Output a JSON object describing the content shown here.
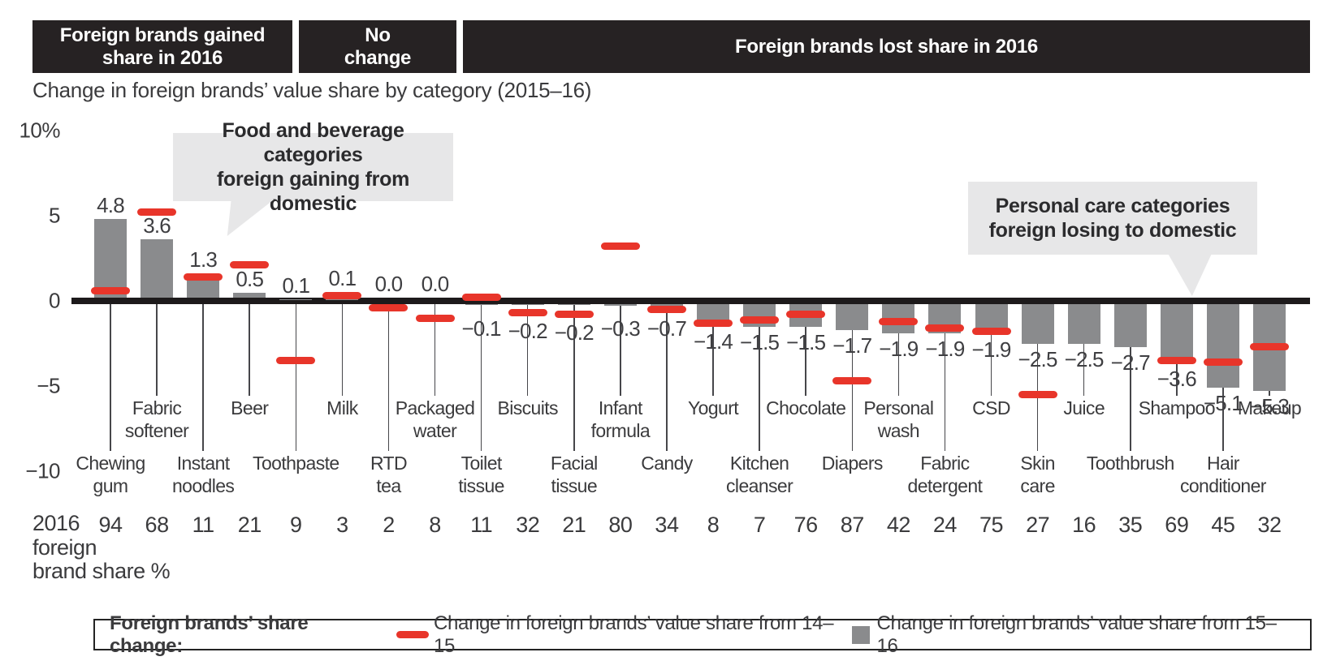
{
  "header": {
    "bands": [
      {
        "id": "gained",
        "label": "Foreign brands gained\nshare in 2016"
      },
      {
        "id": "nochange",
        "label": "No\nchange"
      },
      {
        "id": "lost",
        "label": "Foreign brands lost share in 2016"
      }
    ],
    "title": "Change in foreign brands’ value share by category (2015–16)"
  },
  "callouts": [
    {
      "id": "food",
      "text": "Food and beverage categories\nforeign gaining from domestic"
    },
    {
      "id": "personal",
      "text": "Personal care categories\nforeign losing to domestic"
    }
  ],
  "legend": {
    "title": "Foreign brands’ share change:",
    "items": [
      {
        "swatch": "red-dash",
        "label": "Change in foreign brands’ value share from 14–15"
      },
      {
        "swatch": "gray-square",
        "label": "Change in foreign brands’ value share from 15–16"
      }
    ]
  },
  "colors": {
    "band_bg": "#262223",
    "bar": "#8a8b8d",
    "dash": "#e8352a",
    "callout_bg": "#e7e7e8",
    "axis": "#1d1a1b",
    "text": "#3b3b3d"
  },
  "chart_data": {
    "type": "bar",
    "title": "Change in foreign brands’ value share by category (2015–16)",
    "ylabel": "%",
    "ylim": [
      -10,
      10
    ],
    "grid": false,
    "y_axis_ticks": {
      "labels": [
        "10%",
        "5",
        "0",
        "−5",
        "−10"
      ],
      "values": [
        10,
        5,
        0,
        -5,
        -10
      ]
    },
    "categories": [
      "Chewing\ngum",
      "Fabric\nsoftener",
      "Instant\nnoodles",
      "Beer",
      "Toothpaste",
      "Milk",
      "RTD\ntea",
      "Packaged\nwater",
      "Toilet\ntissue",
      "Biscuits",
      "Facial\ntissue",
      "Infant\nformula",
      "Candy",
      "Yogurt",
      "Kitchen\ncleanser",
      "Chocolate",
      "Diapers",
      "Personal\nwash",
      "Fabric\ndetergent",
      "CSD",
      "Skin\ncare",
      "Juice",
      "Toothbrush",
      "Shampoo",
      "Hair\nconditioner",
      "Makeup"
    ],
    "series": [
      {
        "name": "Change in foreign brands’ value share from 14–15",
        "mark": "red-dash",
        "values": [
          0.6,
          5.2,
          1.4,
          2.1,
          -3.5,
          0.3,
          -0.4,
          -1.0,
          0.2,
          -0.7,
          -0.8,
          3.2,
          -0.5,
          -1.3,
          -1.1,
          -0.8,
          -4.7,
          -1.2,
          -1.6,
          -1.8,
          -5.5,
          null,
          null,
          -3.5,
          -3.6,
          -2.7
        ]
      },
      {
        "name": "Change in foreign brands’ value share from 15–16",
        "mark": "gray-bar",
        "values": [
          4.8,
          3.6,
          1.3,
          0.5,
          0.1,
          0.1,
          0.0,
          0.0,
          -0.1,
          -0.2,
          -0.2,
          -0.3,
          -0.7,
          -1.4,
          -1.5,
          -1.5,
          -1.7,
          -1.9,
          -1.9,
          -1.9,
          -2.5,
          -2.5,
          -2.7,
          -3.6,
          -5.1,
          -5.3
        ]
      }
    ],
    "bar_labels": [
      "4.8",
      "3.6",
      "1.3",
      "0.5",
      "0.1",
      "0.1",
      "0.0",
      "0.0",
      "−0.1",
      "−0.2",
      "−0.2",
      "−0.3",
      "−0.7",
      "−1.4",
      "−1.5",
      "−1.5",
      "−1.7",
      "−1.9",
      "−1.9",
      "−1.9",
      "−2.5",
      "−2.5",
      "−2.7",
      "−3.6",
      "−5.1",
      "−5.3"
    ],
    "share_row": {
      "label": "2016\nforeign\nbrand share %",
      "values": [
        94,
        68,
        11,
        21,
        9,
        3,
        2,
        8,
        11,
        32,
        21,
        80,
        34,
        8,
        7,
        76,
        87,
        42,
        24,
        75,
        27,
        16,
        35,
        69,
        45,
        32
      ]
    }
  }
}
